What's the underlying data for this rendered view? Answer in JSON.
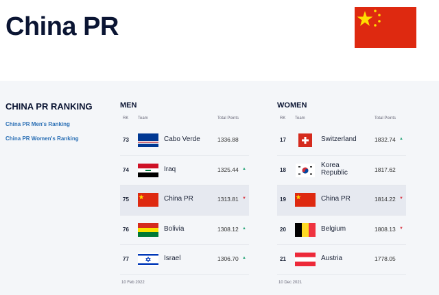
{
  "header": {
    "title": "China PR",
    "flag": "china-flag"
  },
  "sidebar": {
    "heading": "CHINA PR RANKING",
    "links": [
      "China PR Men's Ranking",
      "China PR Women's Ranking"
    ]
  },
  "columns_header": {
    "rk": "RK",
    "team": "Team",
    "points": "Total Points"
  },
  "men": {
    "heading": "MEN",
    "date": "10 Feb 2022",
    "rows": [
      {
        "rk": "73",
        "team": "Cabo Verde",
        "points": "1336.88",
        "trend": "",
        "flag": "cabo-verde"
      },
      {
        "rk": "74",
        "team": "Iraq",
        "points": "1325.44",
        "trend": "up",
        "flag": "iraq"
      },
      {
        "rk": "75",
        "team": "China PR",
        "points": "1313.81",
        "trend": "down",
        "flag": "china",
        "highlight": true
      },
      {
        "rk": "76",
        "team": "Bolivia",
        "points": "1308.12",
        "trend": "up",
        "flag": "bolivia"
      },
      {
        "rk": "77",
        "team": "Israel",
        "points": "1306.70",
        "trend": "up",
        "flag": "israel"
      }
    ]
  },
  "women": {
    "heading": "WOMEN",
    "date": "10 Dec 2021",
    "rows": [
      {
        "rk": "17",
        "team": "Switzerland",
        "points": "1832.74",
        "trend": "up",
        "flag": "switzerland"
      },
      {
        "rk": "18",
        "team": "Korea Republic",
        "points": "1817.62",
        "trend": "",
        "flag": "korea"
      },
      {
        "rk": "19",
        "team": "China PR",
        "points": "1814.22",
        "trend": "down",
        "flag": "china",
        "highlight": true
      },
      {
        "rk": "20",
        "team": "Belgium",
        "points": "1808.13",
        "trend": "down",
        "flag": "belgium"
      },
      {
        "rk": "21",
        "team": "Austria",
        "points": "1778.05",
        "trend": "",
        "flag": "austria"
      }
    ]
  },
  "colors": {
    "up": "#2aa57a",
    "down": "#d9434f",
    "link": "#2a6fb5",
    "title": "#0b1533"
  }
}
